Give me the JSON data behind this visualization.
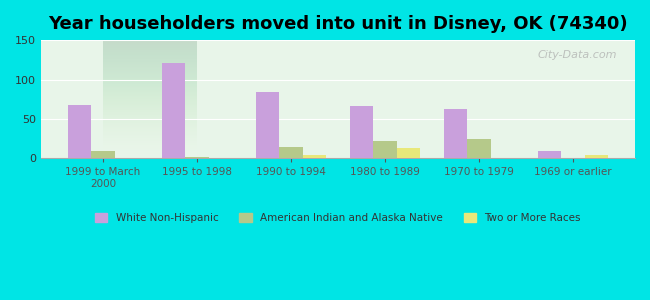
{
  "title": "Year householders moved into unit in Disney, OK (74340)",
  "categories": [
    "1999 to March\n2000",
    "1995 to 1998",
    "1990 to 1994",
    "1980 to 1989",
    "1970 to 1979",
    "1969 or earlier"
  ],
  "series": {
    "White Non-Hispanic": [
      68,
      121,
      84,
      67,
      63,
      10
    ],
    "American Indian and Alaska Native": [
      10,
      2,
      15,
      22,
      25,
      0
    ],
    "Two or More Races": [
      0,
      0,
      4,
      13,
      0,
      5
    ]
  },
  "colors": {
    "White Non-Hispanic": "#c9a0dc",
    "American Indian and Alaska Native": "#b5c98a",
    "Two or More Races": "#e8e87a"
  },
  "ylim": [
    0,
    150
  ],
  "yticks": [
    0,
    50,
    100,
    150
  ],
  "bar_width": 0.25,
  "background_color": "#00e5e5",
  "plot_bg_gradient_top": "#f0fff0",
  "plot_bg_gradient_bottom": "#e8fff8",
  "watermark": "City-Data.com",
  "legend_entries": [
    "White Non-Hispanic",
    "American Indian and Alaska Native",
    "Two or More Races"
  ]
}
